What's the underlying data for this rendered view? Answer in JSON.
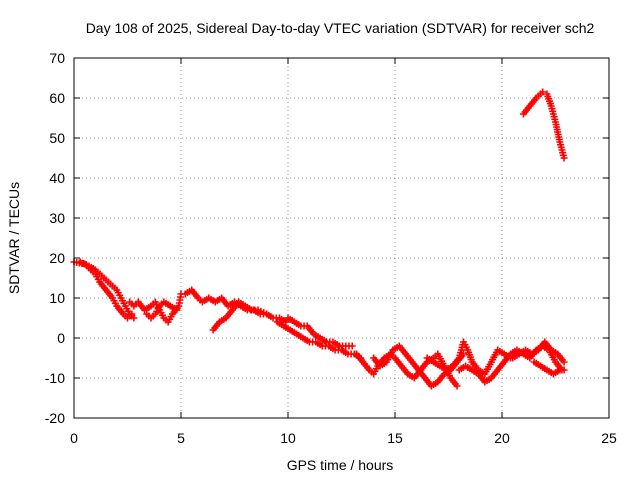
{
  "chart_data": {
    "type": "scatter",
    "title": "Day 108 of 2025, Sidereal Day-to-day VTEC variation (SDTVAR) for receiver sch2",
    "xlabel": "GPS time / hours",
    "ylabel": "SDTVAR / TECUs",
    "xlim": [
      0,
      25
    ],
    "ylim": [
      -20,
      70
    ],
    "xticks": [
      0,
      5,
      10,
      15,
      20,
      25
    ],
    "yticks": [
      -20,
      -10,
      0,
      10,
      20,
      30,
      40,
      50,
      60,
      70
    ],
    "grid": true,
    "marker": "plus",
    "color": "#ff0000",
    "series": [
      {
        "name": "track-a",
        "points": [
          [
            0.0,
            19
          ],
          [
            0.5,
            18.5
          ],
          [
            1.0,
            16
          ],
          [
            1.2,
            14
          ],
          [
            1.5,
            12
          ],
          [
            1.8,
            10
          ],
          [
            2.0,
            8
          ],
          [
            2.3,
            6
          ],
          [
            2.5,
            5
          ],
          [
            2.7,
            6
          ]
        ]
      },
      {
        "name": "track-b",
        "points": [
          [
            0.3,
            19
          ],
          [
            0.7,
            18
          ],
          [
            1.0,
            17
          ],
          [
            1.4,
            15
          ],
          [
            1.8,
            13
          ],
          [
            2.0,
            12
          ],
          [
            2.2,
            10
          ],
          [
            2.4,
            8
          ],
          [
            2.6,
            6
          ],
          [
            2.8,
            5
          ]
        ]
      },
      {
        "name": "track-c",
        "points": [
          [
            2.6,
            9
          ],
          [
            2.8,
            8
          ],
          [
            3.0,
            9
          ],
          [
            3.3,
            7
          ],
          [
            3.6,
            8
          ],
          [
            3.8,
            9
          ],
          [
            4.0,
            7
          ],
          [
            4.2,
            5
          ],
          [
            4.4,
            4
          ],
          [
            4.6,
            6
          ],
          [
            4.9,
            8
          ],
          [
            5.0,
            11
          ]
        ]
      },
      {
        "name": "track-d",
        "points": [
          [
            3.4,
            6
          ],
          [
            3.6,
            5
          ],
          [
            3.8,
            6
          ],
          [
            4.0,
            8
          ],
          [
            4.2,
            9
          ],
          [
            4.5,
            8
          ],
          [
            4.8,
            7
          ]
        ]
      },
      {
        "name": "track-e",
        "points": [
          [
            5.2,
            11
          ],
          [
            5.5,
            12
          ],
          [
            5.8,
            10
          ],
          [
            6.0,
            9
          ],
          [
            6.3,
            10
          ],
          [
            6.6,
            9
          ],
          [
            6.9,
            10
          ],
          [
            7.2,
            8
          ],
          [
            7.5,
            9
          ],
          [
            7.8,
            8
          ],
          [
            8.1,
            7
          ],
          [
            8.4,
            7
          ],
          [
            8.7,
            6
          ],
          [
            9.0,
            6
          ],
          [
            9.3,
            5
          ],
          [
            9.6,
            5
          ],
          [
            9.9,
            4
          ]
        ]
      },
      {
        "name": "track-f",
        "points": [
          [
            6.5,
            2
          ],
          [
            6.8,
            4
          ],
          [
            7.1,
            5
          ],
          [
            7.4,
            7
          ],
          [
            7.7,
            9
          ],
          [
            8.0,
            8
          ],
          [
            8.3,
            7
          ],
          [
            8.6,
            7
          ],
          [
            9.0,
            6
          ]
        ]
      },
      {
        "name": "track-g",
        "points": [
          [
            10.0,
            5
          ],
          [
            10.3,
            4
          ],
          [
            10.6,
            3
          ],
          [
            10.9,
            3
          ],
          [
            11.2,
            1
          ],
          [
            11.5,
            0
          ],
          [
            11.8,
            -1
          ],
          [
            12.1,
            -1
          ],
          [
            12.4,
            -2
          ],
          [
            12.7,
            -2
          ],
          [
            13.0,
            -2
          ]
        ]
      },
      {
        "name": "track-h",
        "points": [
          [
            9.5,
            4
          ],
          [
            9.8,
            3
          ],
          [
            10.1,
            2
          ],
          [
            10.4,
            1
          ],
          [
            10.7,
            0
          ],
          [
            11.0,
            -1
          ],
          [
            11.3,
            -1
          ],
          [
            11.6,
            -2
          ],
          [
            11.9,
            -2
          ],
          [
            12.2,
            -3
          ],
          [
            12.5,
            -3
          ],
          [
            12.8,
            -4
          ],
          [
            13.1,
            -4
          ],
          [
            13.4,
            -5
          ]
        ]
      },
      {
        "name": "track-i",
        "points": [
          [
            13.2,
            -4
          ],
          [
            13.5,
            -6
          ],
          [
            13.8,
            -8
          ],
          [
            14.0,
            -9
          ],
          [
            14.2,
            -7
          ],
          [
            14.5,
            -5
          ],
          [
            14.8,
            -4
          ],
          [
            15.0,
            -5
          ],
          [
            15.3,
            -7
          ],
          [
            15.6,
            -9
          ],
          [
            15.9,
            -10
          ],
          [
            16.2,
            -8
          ],
          [
            16.5,
            -6
          ],
          [
            16.8,
            -5
          ],
          [
            17.0,
            -4
          ],
          [
            17.3,
            -7
          ],
          [
            17.6,
            -10
          ],
          [
            17.9,
            -12
          ]
        ]
      },
      {
        "name": "track-j",
        "points": [
          [
            14.0,
            -5
          ],
          [
            14.3,
            -7
          ],
          [
            14.6,
            -6
          ],
          [
            14.9,
            -3
          ],
          [
            15.2,
            -2
          ],
          [
            15.5,
            -4
          ],
          [
            15.8,
            -6
          ],
          [
            16.1,
            -8
          ],
          [
            16.4,
            -10
          ],
          [
            16.7,
            -12
          ],
          [
            17.0,
            -11
          ],
          [
            17.3,
            -9
          ],
          [
            17.6,
            -8
          ],
          [
            17.9,
            -6
          ],
          [
            18.2,
            -4
          ]
        ]
      },
      {
        "name": "track-k",
        "points": [
          [
            16.5,
            -5
          ],
          [
            16.8,
            -6
          ],
          [
            17.1,
            -7
          ],
          [
            17.4,
            -8
          ],
          [
            17.7,
            -7
          ],
          [
            18.0,
            -5
          ],
          [
            18.2,
            -1
          ],
          [
            18.4,
            -3
          ],
          [
            18.6,
            -6
          ],
          [
            18.9,
            -8
          ],
          [
            19.2,
            -9
          ],
          [
            19.5,
            -6
          ],
          [
            19.8,
            -3
          ],
          [
            20.1,
            -4
          ],
          [
            20.4,
            -5
          ]
        ]
      },
      {
        "name": "track-l",
        "points": [
          [
            18.0,
            -8
          ],
          [
            18.3,
            -7
          ],
          [
            18.6,
            -8
          ],
          [
            18.9,
            -9
          ],
          [
            19.2,
            -11
          ],
          [
            19.5,
            -10
          ],
          [
            19.8,
            -8
          ],
          [
            20.1,
            -6
          ],
          [
            20.4,
            -4
          ],
          [
            20.7,
            -3
          ],
          [
            21.0,
            -4
          ],
          [
            21.3,
            -5
          ],
          [
            21.6,
            -3
          ],
          [
            21.9,
            -2
          ],
          [
            22.2,
            -3
          ],
          [
            22.5,
            -6
          ],
          [
            22.8,
            -8
          ]
        ]
      },
      {
        "name": "track-m",
        "points": [
          [
            20.5,
            -5
          ],
          [
            20.8,
            -4
          ],
          [
            21.1,
            -3
          ],
          [
            21.4,
            -4
          ],
          [
            21.7,
            -3
          ],
          [
            22.0,
            -1
          ],
          [
            22.3,
            -3
          ],
          [
            22.6,
            -4
          ],
          [
            22.9,
            -6
          ]
        ]
      },
      {
        "name": "track-n",
        "points": [
          [
            21.5,
            -6
          ],
          [
            21.8,
            -7
          ],
          [
            22.1,
            -8
          ],
          [
            22.4,
            -9
          ],
          [
            22.7,
            -8
          ],
          [
            22.9,
            -8
          ]
        ]
      },
      {
        "name": "track-o",
        "points": [
          [
            21.0,
            56
          ],
          [
            21.3,
            58
          ],
          [
            21.6,
            60
          ],
          [
            21.9,
            61.5
          ],
          [
            22.1,
            61
          ],
          [
            22.3,
            58
          ],
          [
            22.5,
            54
          ],
          [
            22.7,
            49
          ],
          [
            22.9,
            45
          ]
        ]
      }
    ]
  }
}
